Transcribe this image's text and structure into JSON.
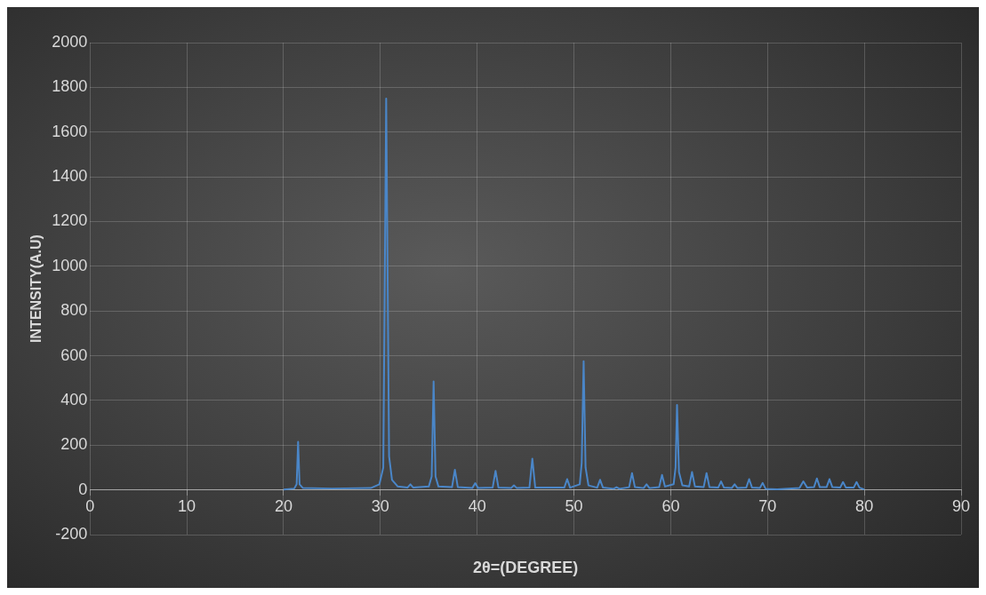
{
  "chart_data": {
    "type": "line",
    "xlabel": "2θ=(DEGREE)",
    "ylabel": "INTENSITY(A.U)",
    "xlim": [
      0,
      90
    ],
    "xticks": [
      0,
      10,
      20,
      30,
      40,
      50,
      60,
      70,
      80,
      90
    ],
    "ylim": [
      -200,
      2000
    ],
    "yticks": [
      -200,
      0,
      200,
      400,
      600,
      800,
      1000,
      1200,
      1400,
      1600,
      1800,
      2000
    ],
    "grid": true,
    "legend": false,
    "marker": "none",
    "line_style": "solid",
    "series": [
      {
        "color": "#4a86c8",
        "x": [
          20,
          21.1,
          21.35,
          21.5,
          21.65,
          22,
          25,
          29,
          29.9,
          30.3,
          30.6,
          30.9,
          31.2,
          31.8,
          32.8,
          33.1,
          33.4,
          35,
          35.3,
          35.5,
          35.7,
          36,
          37.4,
          37.7,
          38,
          39.5,
          39.8,
          40.1,
          41.6,
          41.9,
          42.2,
          43.5,
          43.8,
          44.1,
          45.4,
          45.7,
          46,
          49,
          49.3,
          49.6,
          50.6,
          50.8,
          51,
          51.2,
          51.5,
          52.4,
          52.7,
          53,
          54.1,
          54.4,
          54.7,
          55.7,
          56,
          56.3,
          57.2,
          57.5,
          57.8,
          58.8,
          59.1,
          59.4,
          60.3,
          60.5,
          60.65,
          60.85,
          61.2,
          61.9,
          62.2,
          62.5,
          63.4,
          63.7,
          64,
          64.9,
          65.2,
          65.5,
          66.3,
          66.6,
          66.9,
          67.8,
          68.1,
          68.4,
          69.2,
          69.5,
          69.8,
          71,
          73.3,
          73.7,
          74.1,
          74.8,
          75.1,
          75.4,
          76.1,
          76.4,
          76.7,
          77.5,
          77.8,
          78.1,
          78.9,
          79.2,
          79.5,
          80
        ],
        "values": [
          2,
          6,
          25,
          215,
          25,
          8,
          6,
          8,
          25,
          100,
          1750,
          150,
          45,
          15,
          10,
          25,
          10,
          15,
          60,
          485,
          60,
          15,
          12,
          90,
          12,
          8,
          30,
          8,
          10,
          85,
          10,
          8,
          20,
          8,
          10,
          140,
          10,
          10,
          48,
          10,
          25,
          120,
          575,
          100,
          20,
          10,
          45,
          10,
          5,
          12,
          5,
          12,
          75,
          12,
          8,
          25,
          8,
          12,
          67,
          15,
          25,
          100,
          380,
          80,
          20,
          15,
          80,
          15,
          12,
          75,
          12,
          10,
          38,
          10,
          8,
          25,
          8,
          10,
          48,
          10,
          8,
          31,
          5,
          3,
          8,
          38,
          10,
          12,
          51,
          12,
          12,
          48,
          12,
          10,
          35,
          10,
          10,
          35,
          10,
          2
        ]
      }
    ]
  }
}
